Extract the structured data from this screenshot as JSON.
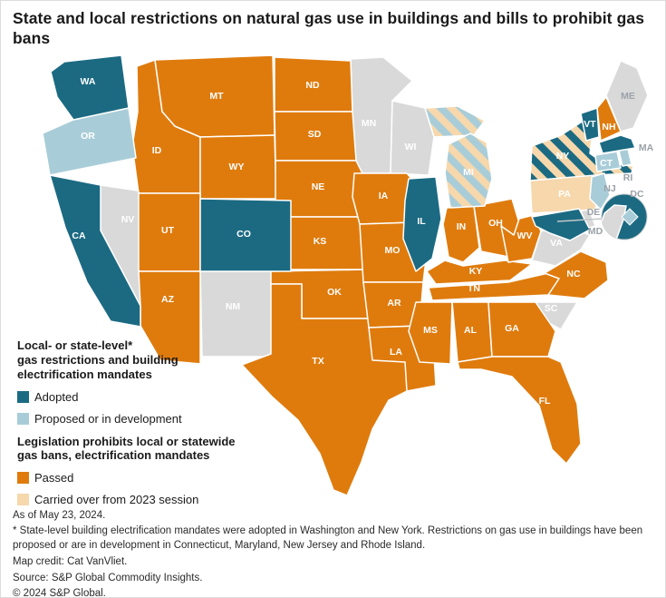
{
  "title": "State and local restrictions on natural gas use in buildings and bills to prohibit gas bans",
  "colors": {
    "adopted": "#1b6a82",
    "proposed": "#a9cdd8",
    "passed": "#df7b0d",
    "carried": "#f6d8ac",
    "none": "#d9d9d9",
    "muted_label": "#9aa2a8"
  },
  "legend": {
    "group1_lines": [
      "Local- or state-level*",
      "gas restrictions and building",
      "electrification mandates"
    ],
    "items1": [
      {
        "key": "adopted",
        "label": "Adopted"
      },
      {
        "key": "proposed",
        "label": "Proposed or in development"
      }
    ],
    "group2_lines": [
      "Legislation prohibits local or statewide",
      "gas bans, electrification mandates"
    ],
    "items2": [
      {
        "key": "passed",
        "label": "Passed"
      },
      {
        "key": "carried",
        "label": "Carried over from 2023 session"
      }
    ]
  },
  "map": {
    "states": [
      {
        "abbr": "NV",
        "category": "none"
      },
      {
        "abbr": "NM",
        "category": "none"
      },
      {
        "abbr": "MN",
        "category": "none"
      },
      {
        "abbr": "WI",
        "category": "none"
      },
      {
        "abbr": "VA",
        "category": "none"
      },
      {
        "abbr": "SC",
        "category": "none"
      },
      {
        "abbr": "ME",
        "category": "none",
        "muted_label": true
      },
      {
        "abbr": "DE",
        "category": "none",
        "muted_label": true
      },
      {
        "abbr": "ID",
        "category": "passed"
      },
      {
        "abbr": "MT",
        "category": "passed"
      },
      {
        "abbr": "WY",
        "category": "passed"
      },
      {
        "abbr": "UT",
        "category": "passed"
      },
      {
        "abbr": "AZ",
        "category": "passed"
      },
      {
        "abbr": "ND",
        "category": "passed"
      },
      {
        "abbr": "SD",
        "category": "passed"
      },
      {
        "abbr": "NE",
        "category": "passed"
      },
      {
        "abbr": "KS",
        "category": "passed"
      },
      {
        "abbr": "OK",
        "category": "passed"
      },
      {
        "abbr": "TX",
        "category": "passed"
      },
      {
        "abbr": "IA",
        "category": "passed"
      },
      {
        "abbr": "MO",
        "category": "passed"
      },
      {
        "abbr": "AR",
        "category": "passed"
      },
      {
        "abbr": "LA",
        "category": "passed"
      },
      {
        "abbr": "IN",
        "category": "passed"
      },
      {
        "abbr": "OH",
        "category": "passed"
      },
      {
        "abbr": "KY",
        "category": "passed"
      },
      {
        "abbr": "TN",
        "category": "passed"
      },
      {
        "abbr": "WV",
        "category": "passed"
      },
      {
        "abbr": "NC",
        "category": "passed"
      },
      {
        "abbr": "MS",
        "category": "passed"
      },
      {
        "abbr": "AL",
        "category": "passed"
      },
      {
        "abbr": "GA",
        "category": "passed"
      },
      {
        "abbr": "FL",
        "category": "passed"
      },
      {
        "abbr": "NH",
        "category": "passed"
      },
      {
        "abbr": "PA",
        "category": "carried"
      },
      {
        "abbr": "MI",
        "category": "proposed+carried"
      },
      {
        "abbr": "NY",
        "category": "adopted+carried"
      },
      {
        "abbr": "OR",
        "category": "proposed"
      },
      {
        "abbr": "CT",
        "category": "proposed"
      },
      {
        "abbr": "RI",
        "category": "proposed",
        "muted_label": true
      },
      {
        "abbr": "NJ",
        "category": "proposed",
        "muted_label": true
      },
      {
        "abbr": "WA",
        "category": "adopted"
      },
      {
        "abbr": "CA",
        "category": "adopted"
      },
      {
        "abbr": "CO",
        "category": "adopted"
      },
      {
        "abbr": "IL",
        "category": "adopted"
      },
      {
        "abbr": "VT",
        "category": "adopted"
      },
      {
        "abbr": "MA",
        "category": "adopted",
        "muted_label": true
      },
      {
        "abbr": "MD",
        "category": "adopted",
        "muted_label": true
      }
    ],
    "dc_inset": {
      "label": "DC",
      "circle_color_key": "adopted",
      "land_color_key": "none",
      "district_color_key": "proposed"
    }
  },
  "footer": {
    "as_of": "As of May 23, 2024.",
    "note": "* State-level building electrification mandates were adopted in Washington and New York. Restrictions on gas use in buildings have been proposed or are in development in Connecticut, Maryland, New Jersey and Rhode Island.",
    "credit": "Map credit: Cat VanVliet.",
    "source": "Source: S&P Global Commodity Insights.",
    "copyright": "© 2024 S&P Global."
  }
}
